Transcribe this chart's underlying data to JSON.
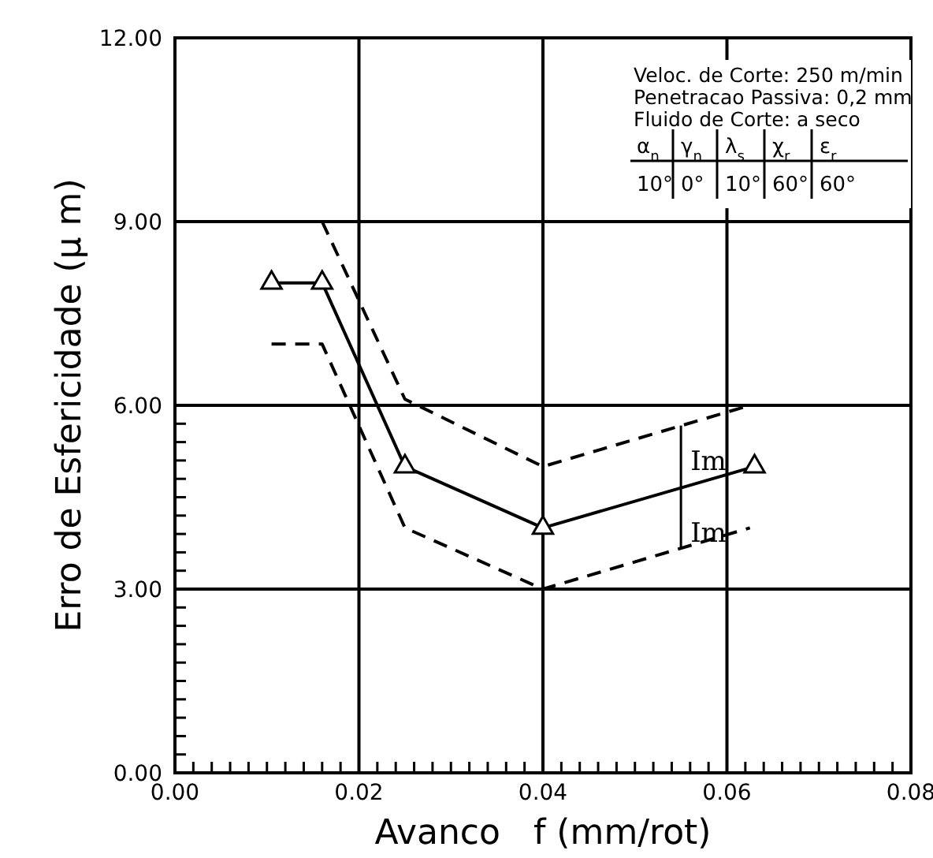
{
  "chart_data": {
    "type": "line",
    "xlabel": "Avanco   f (mm/rot)",
    "ylabel": "Erro de Esfericidade (μ m)",
    "xlim": [
      0,
      0.08
    ],
    "ylim": [
      0,
      12
    ],
    "xticks": [
      {
        "value": 0,
        "label": "0.00"
      },
      {
        "value": 0.002,
        "label": null
      },
      {
        "value": 0.004,
        "label": null
      },
      {
        "value": 0.006,
        "label": null
      },
      {
        "value": 0.008,
        "label": null
      },
      {
        "value": 0.01,
        "label": null
      },
      {
        "value": 0.012,
        "label": null
      },
      {
        "value": 0.014,
        "label": null
      },
      {
        "value": 0.016,
        "label": null
      },
      {
        "value": 0.018,
        "label": null
      },
      {
        "value": 0.02,
        "label": "0.02"
      },
      {
        "value": 0.022,
        "label": null
      },
      {
        "value": 0.024,
        "label": null
      },
      {
        "value": 0.026,
        "label": null
      },
      {
        "value": 0.028,
        "label": null
      },
      {
        "value": 0.03,
        "label": null
      },
      {
        "value": 0.032,
        "label": null
      },
      {
        "value": 0.034,
        "label": null
      },
      {
        "value": 0.036,
        "label": null
      },
      {
        "value": 0.038,
        "label": null
      },
      {
        "value": 0.04,
        "label": "0.04"
      },
      {
        "value": 0.042,
        "label": null
      },
      {
        "value": 0.044,
        "label": null
      },
      {
        "value": 0.046,
        "label": null
      },
      {
        "value": 0.048,
        "label": null
      },
      {
        "value": 0.05,
        "label": null
      },
      {
        "value": 0.052,
        "label": null
      },
      {
        "value": 0.054,
        "label": null
      },
      {
        "value": 0.056,
        "label": null
      },
      {
        "value": 0.058,
        "label": null
      },
      {
        "value": 0.06,
        "label": "0.06"
      },
      {
        "value": 0.062,
        "label": null
      },
      {
        "value": 0.064,
        "label": null
      },
      {
        "value": 0.066,
        "label": null
      },
      {
        "value": 0.068,
        "label": null
      },
      {
        "value": 0.07,
        "label": null
      },
      {
        "value": 0.072,
        "label": null
      },
      {
        "value": 0.074,
        "label": null
      },
      {
        "value": 0.076,
        "label": null
      },
      {
        "value": 0.078,
        "label": null
      },
      {
        "value": 0.08,
        "label": "0.08"
      }
    ],
    "yticks": [
      {
        "value": 0,
        "label": "0.00"
      },
      {
        "value": 0.3,
        "label": null
      },
      {
        "value": 0.6,
        "label": null
      },
      {
        "value": 0.9,
        "label": null
      },
      {
        "value": 1.2,
        "label": null
      },
      {
        "value": 1.5,
        "label": null
      },
      {
        "value": 1.8,
        "label": null
      },
      {
        "value": 2.1,
        "label": null
      },
      {
        "value": 2.4,
        "label": null
      },
      {
        "value": 2.7,
        "label": null
      },
      {
        "value": 3,
        "label": "3.00"
      },
      {
        "value": 3.3,
        "label": null
      },
      {
        "value": 3.6,
        "label": null
      },
      {
        "value": 3.9,
        "label": null
      },
      {
        "value": 4.2,
        "label": null
      },
      {
        "value": 4.5,
        "label": null
      },
      {
        "value": 4.8,
        "label": null
      },
      {
        "value": 5.1,
        "label": null
      },
      {
        "value": 5.4,
        "label": null
      },
      {
        "value": 5.7,
        "label": null
      },
      {
        "value": 6,
        "label": "6.00"
      },
      {
        "value": 9,
        "label": "9.00"
      },
      {
        "value": 12,
        "label": "12.00"
      }
    ],
    "grid": true,
    "series": [
      {
        "color": "#000000",
        "marker": "triangle",
        "line_style": "solid",
        "x": [
          0.0105,
          0.016,
          0.025,
          0.04,
          0.063
        ],
        "values": [
          8,
          8,
          5,
          4,
          5
        ]
      },
      {
        "color": "#000000",
        "marker": "none",
        "line_style": "dashed",
        "x": [
          0.016,
          0.025,
          0.04,
          0.0625
        ],
        "values": [
          9,
          6.1,
          5,
          6
        ]
      },
      {
        "color": "#000000",
        "marker": "none",
        "line_style": "dashed",
        "x": [
          0.0105,
          0.016,
          0.025,
          0.04,
          0.0625
        ],
        "values": [
          7,
          7,
          4,
          3,
          4
        ]
      }
    ],
    "annotations": [
      "Veloc. de Corte: 250 m/min",
      "Penetracao Passiva: 0,2 mm",
      "Fluido de Corte: a seco",
      "α$_{n}$",
      "γ$_{n}$",
      "λ$_{s}$",
      "χ$_{r}$",
      "ε$_{r}$",
      "10°",
      "0°",
      "10°",
      "60°",
      "60°",
      {
        "text": "Im",
        "x": 0.055,
        "y": 5.67
      },
      {
        "text": "Im",
        "x": 0.055,
        "y": 3.67
      }
    ]
  }
}
